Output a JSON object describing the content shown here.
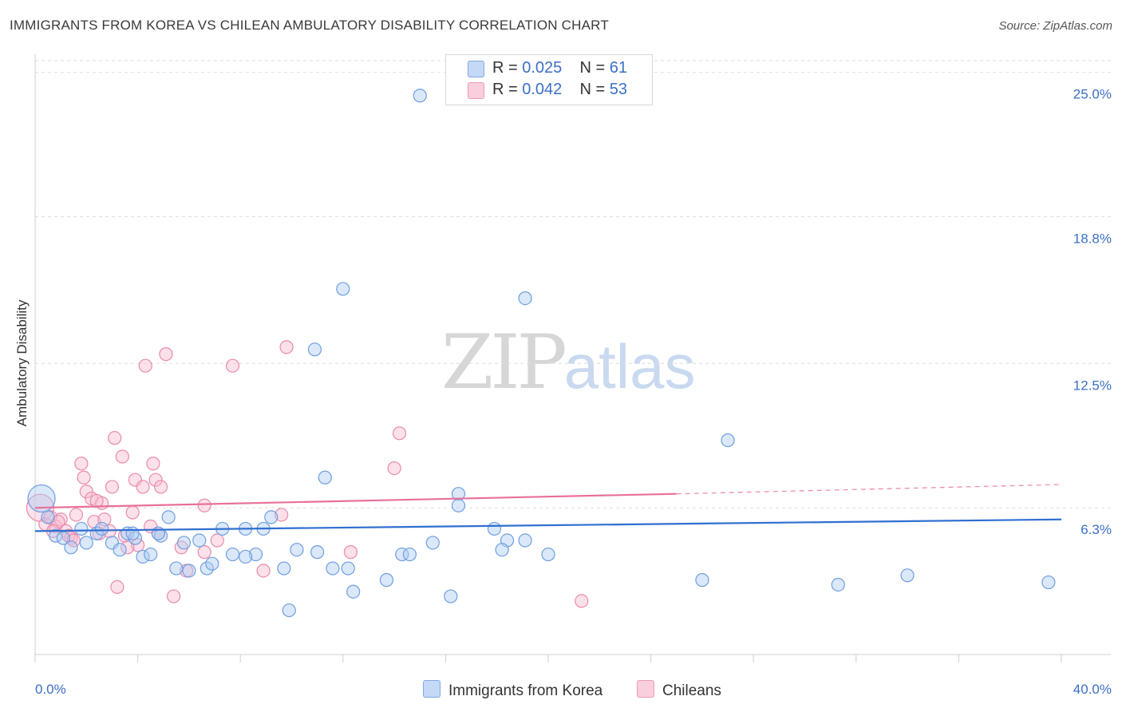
{
  "title": "IMMIGRANTS FROM KOREA VS CHILEAN AMBULATORY DISABILITY CORRELATION CHART",
  "source": "Source: ZipAtlas.com",
  "watermark": {
    "zip": "ZIP",
    "atlas": "atlas"
  },
  "legend_top": [
    {
      "r_label": "R = ",
      "r_value": "0.025",
      "n_label": "N = ",
      "n_value": "61"
    },
    {
      "r_label": "R = ",
      "r_value": "0.042",
      "n_label": "N = ",
      "n_value": "53"
    }
  ],
  "legend_bottom": [
    "Immigrants from Korea",
    "Chileans"
  ],
  "colors": {
    "korea_fill": "#aecbf3",
    "korea_stroke": "#6f9ee0",
    "korea_line": "#2f6fd0",
    "chile_fill": "#f8bcd0",
    "chile_stroke": "#ea8aab",
    "chile_line": "#e8709a",
    "tick_text": "#3b6fc6",
    "grid": "#dedede"
  },
  "chart_data": {
    "type": "scatter",
    "title": "IMMIGRANTS FROM KOREA VS CHILEAN AMBULATORY DISABILITY CORRELATION CHART",
    "xlabel": "",
    "ylabel": "Ambulatory Disability",
    "xlim": [
      0,
      40
    ],
    "ylim": [
      0,
      25.5
    ],
    "x_tick_labels": [
      "0.0%",
      "40.0%"
    ],
    "y_ticks": [
      6.3,
      12.5,
      18.8,
      25.0
    ],
    "y_tick_labels": [
      "6.3%",
      "12.5%",
      "18.8%",
      "25.0%"
    ],
    "grid": true,
    "legend_position": "top-center",
    "series": [
      {
        "name": "Immigrants from Korea",
        "r": 0.025,
        "n": 61,
        "trend": {
          "x": [
            0,
            40
          ],
          "y": [
            5.3,
            5.8
          ]
        },
        "points": [
          {
            "x": 0.25,
            "y": 6.7,
            "big": true
          },
          {
            "x": 0.5,
            "y": 5.9
          },
          {
            "x": 0.8,
            "y": 5.1
          },
          {
            "x": 1.1,
            "y": 5.0
          },
          {
            "x": 1.4,
            "y": 4.6
          },
          {
            "x": 1.8,
            "y": 5.4
          },
          {
            "x": 2.0,
            "y": 4.8
          },
          {
            "x": 2.4,
            "y": 5.2
          },
          {
            "x": 2.6,
            "y": 5.4
          },
          {
            "x": 3.0,
            "y": 4.8
          },
          {
            "x": 3.3,
            "y": 4.5
          },
          {
            "x": 3.6,
            "y": 5.2
          },
          {
            "x": 3.9,
            "y": 5.0
          },
          {
            "x": 4.2,
            "y": 4.2
          },
          {
            "x": 4.5,
            "y": 4.3
          },
          {
            "x": 4.9,
            "y": 5.1
          },
          {
            "x": 5.2,
            "y": 5.9
          },
          {
            "x": 5.5,
            "y": 3.7
          },
          {
            "x": 5.8,
            "y": 4.8
          },
          {
            "x": 6.0,
            "y": 3.6
          },
          {
            "x": 6.4,
            "y": 4.9
          },
          {
            "x": 6.7,
            "y": 3.7
          },
          {
            "x": 6.9,
            "y": 3.9
          },
          {
            "x": 7.3,
            "y": 5.4
          },
          {
            "x": 7.7,
            "y": 4.3
          },
          {
            "x": 8.2,
            "y": 5.4
          },
          {
            "x": 8.6,
            "y": 4.3
          },
          {
            "x": 8.9,
            "y": 5.4
          },
          {
            "x": 9.2,
            "y": 5.9
          },
          {
            "x": 9.7,
            "y": 3.7
          },
          {
            "x": 10.2,
            "y": 4.5
          },
          {
            "x": 11.0,
            "y": 4.4
          },
          {
            "x": 11.6,
            "y": 3.7
          },
          {
            "x": 12.2,
            "y": 3.7
          },
          {
            "x": 13.7,
            "y": 3.2
          },
          {
            "x": 14.3,
            "y": 4.3
          },
          {
            "x": 14.6,
            "y": 4.3
          },
          {
            "x": 15.5,
            "y": 4.8
          },
          {
            "x": 16.2,
            "y": 2.5
          },
          {
            "x": 16.5,
            "y": 6.9
          },
          {
            "x": 16.5,
            "y": 6.4
          },
          {
            "x": 17.9,
            "y": 5.4
          },
          {
            "x": 18.4,
            "y": 4.9
          },
          {
            "x": 18.2,
            "y": 4.5
          },
          {
            "x": 19.1,
            "y": 4.9
          },
          {
            "x": 19.1,
            "y": 15.3
          },
          {
            "x": 20.0,
            "y": 4.3
          },
          {
            "x": 8.2,
            "y": 4.2
          },
          {
            "x": 9.9,
            "y": 1.9
          },
          {
            "x": 12.4,
            "y": 2.7
          },
          {
            "x": 11.3,
            "y": 7.6
          },
          {
            "x": 15.0,
            "y": 24.0
          },
          {
            "x": 12.0,
            "y": 15.7
          },
          {
            "x": 10.9,
            "y": 13.1
          },
          {
            "x": 27.0,
            "y": 9.2
          },
          {
            "x": 26.0,
            "y": 3.2
          },
          {
            "x": 31.3,
            "y": 3.0
          },
          {
            "x": 34.0,
            "y": 3.4
          },
          {
            "x": 39.5,
            "y": 3.1
          },
          {
            "x": 4.8,
            "y": 5.2
          },
          {
            "x": 3.8,
            "y": 5.2
          }
        ]
      },
      {
        "name": "Chileans",
        "r": 0.042,
        "n": 53,
        "trend": {
          "x": [
            0,
            25
          ],
          "y": [
            6.3,
            6.9
          ]
        },
        "trend_extension": {
          "x": [
            25,
            40
          ],
          "y": [
            6.9,
            7.3
          ]
        },
        "points": [
          {
            "x": 0.2,
            "y": 6.3,
            "big": true
          },
          {
            "x": 0.4,
            "y": 5.6
          },
          {
            "x": 0.6,
            "y": 5.9
          },
          {
            "x": 0.8,
            "y": 5.5
          },
          {
            "x": 1.0,
            "y": 5.8
          },
          {
            "x": 1.2,
            "y": 5.3
          },
          {
            "x": 1.4,
            "y": 5.0
          },
          {
            "x": 1.6,
            "y": 6.0
          },
          {
            "x": 1.8,
            "y": 8.2
          },
          {
            "x": 1.9,
            "y": 7.6
          },
          {
            "x": 2.0,
            "y": 7.0
          },
          {
            "x": 2.2,
            "y": 6.7
          },
          {
            "x": 2.3,
            "y": 5.7
          },
          {
            "x": 2.5,
            "y": 5.2
          },
          {
            "x": 2.6,
            "y": 6.5
          },
          {
            "x": 2.7,
            "y": 5.8
          },
          {
            "x": 3.0,
            "y": 7.2
          },
          {
            "x": 3.1,
            "y": 9.3
          },
          {
            "x": 3.2,
            "y": 2.9
          },
          {
            "x": 3.4,
            "y": 8.5
          },
          {
            "x": 3.5,
            "y": 5.1
          },
          {
            "x": 3.8,
            "y": 6.1
          },
          {
            "x": 3.9,
            "y": 7.5
          },
          {
            "x": 4.0,
            "y": 4.7
          },
          {
            "x": 4.2,
            "y": 7.2
          },
          {
            "x": 4.3,
            "y": 12.4
          },
          {
            "x": 4.6,
            "y": 8.2
          },
          {
            "x": 4.7,
            "y": 7.5
          },
          {
            "x": 4.9,
            "y": 7.2
          },
          {
            "x": 5.1,
            "y": 12.9
          },
          {
            "x": 5.4,
            "y": 2.5
          },
          {
            "x": 5.7,
            "y": 4.6
          },
          {
            "x": 5.9,
            "y": 3.6
          },
          {
            "x": 6.6,
            "y": 4.4
          },
          {
            "x": 7.1,
            "y": 4.9
          },
          {
            "x": 7.7,
            "y": 12.4
          },
          {
            "x": 8.9,
            "y": 3.6
          },
          {
            "x": 9.6,
            "y": 6.0
          },
          {
            "x": 9.8,
            "y": 13.2
          },
          {
            "x": 12.3,
            "y": 4.4
          },
          {
            "x": 14.0,
            "y": 8.0
          },
          {
            "x": 14.2,
            "y": 9.5
          },
          {
            "x": 21.3,
            "y": 2.3
          },
          {
            "x": 6.6,
            "y": 6.4
          },
          {
            "x": 4.8,
            "y": 5.2
          },
          {
            "x": 3.6,
            "y": 4.6
          },
          {
            "x": 2.9,
            "y": 5.3
          },
          {
            "x": 1.3,
            "y": 5.1
          },
          {
            "x": 0.9,
            "y": 5.7
          },
          {
            "x": 2.4,
            "y": 6.6
          },
          {
            "x": 1.5,
            "y": 4.9
          },
          {
            "x": 4.5,
            "y": 5.5
          },
          {
            "x": 0.7,
            "y": 5.3
          }
        ]
      }
    ]
  }
}
